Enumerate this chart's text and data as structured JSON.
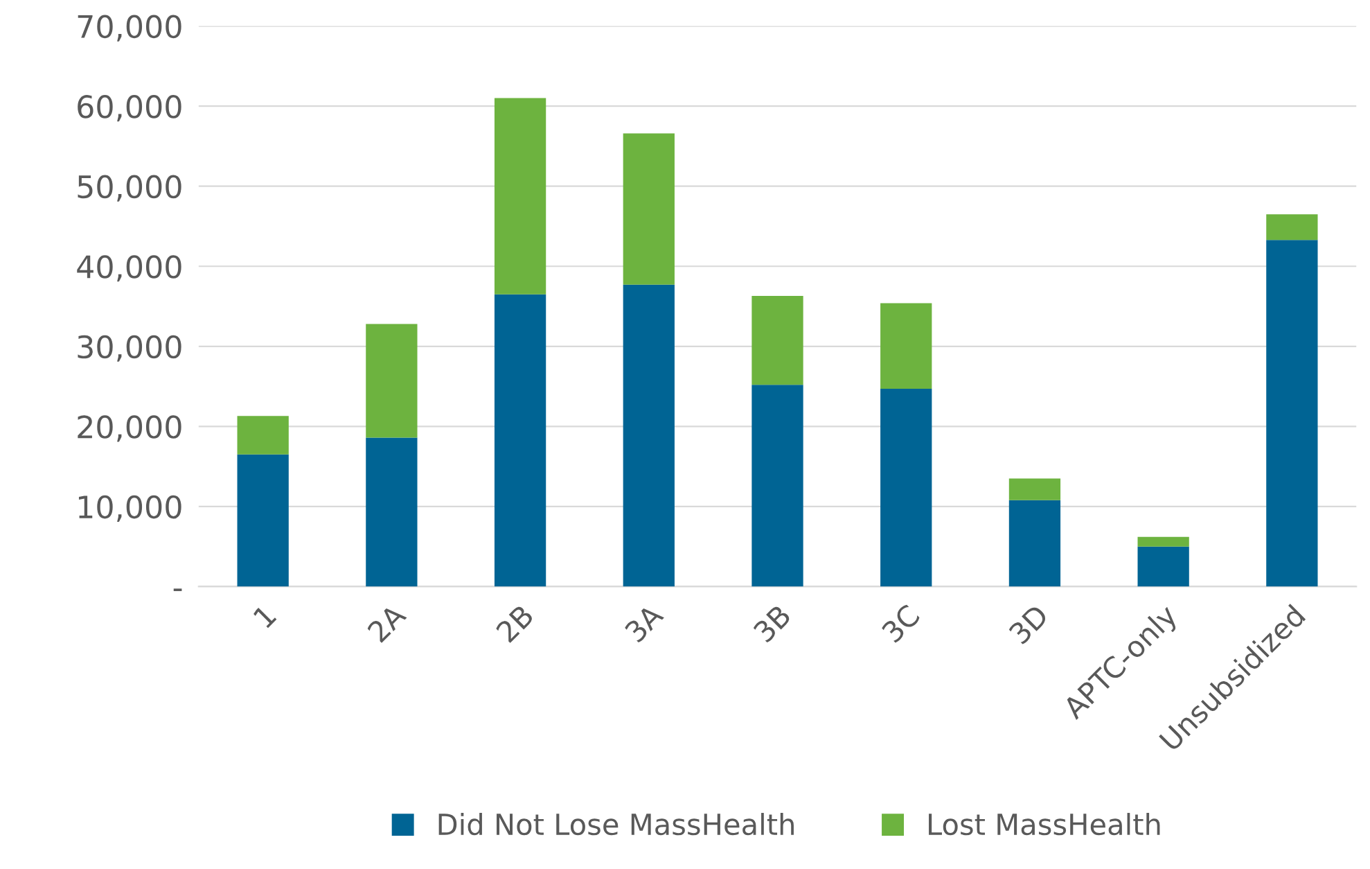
{
  "chart_data": {
    "type": "bar",
    "stacked": true,
    "categories": [
      "1",
      "2A",
      "2B",
      "3A",
      "3B",
      "3C",
      "3D",
      "APTC-only",
      "Unsubsidized"
    ],
    "series": [
      {
        "name": "Did Not Lose MassHealth",
        "color": "#006494",
        "values": [
          16500,
          18600,
          36500,
          37700,
          25200,
          24700,
          10800,
          5000,
          43300
        ]
      },
      {
        "name": "Lost MassHealth",
        "color": "#6db33f",
        "values": [
          4800,
          14200,
          24500,
          18900,
          11100,
          10700,
          2700,
          1200,
          3200
        ]
      }
    ],
    "ylim": [
      0,
      70000
    ],
    "yticks": [
      {
        "value": 0,
        "label": "-"
      },
      {
        "value": 10000,
        "label": "10,000"
      },
      {
        "value": 20000,
        "label": "20,000"
      },
      {
        "value": 30000,
        "label": "30,000"
      },
      {
        "value": 40000,
        "label": "40,000"
      },
      {
        "value": 50000,
        "label": "50,000"
      },
      {
        "value": 60000,
        "label": "60,000"
      },
      {
        "value": 70000,
        "label": "70,000"
      }
    ],
    "grid": "y",
    "legend": "bottom"
  }
}
